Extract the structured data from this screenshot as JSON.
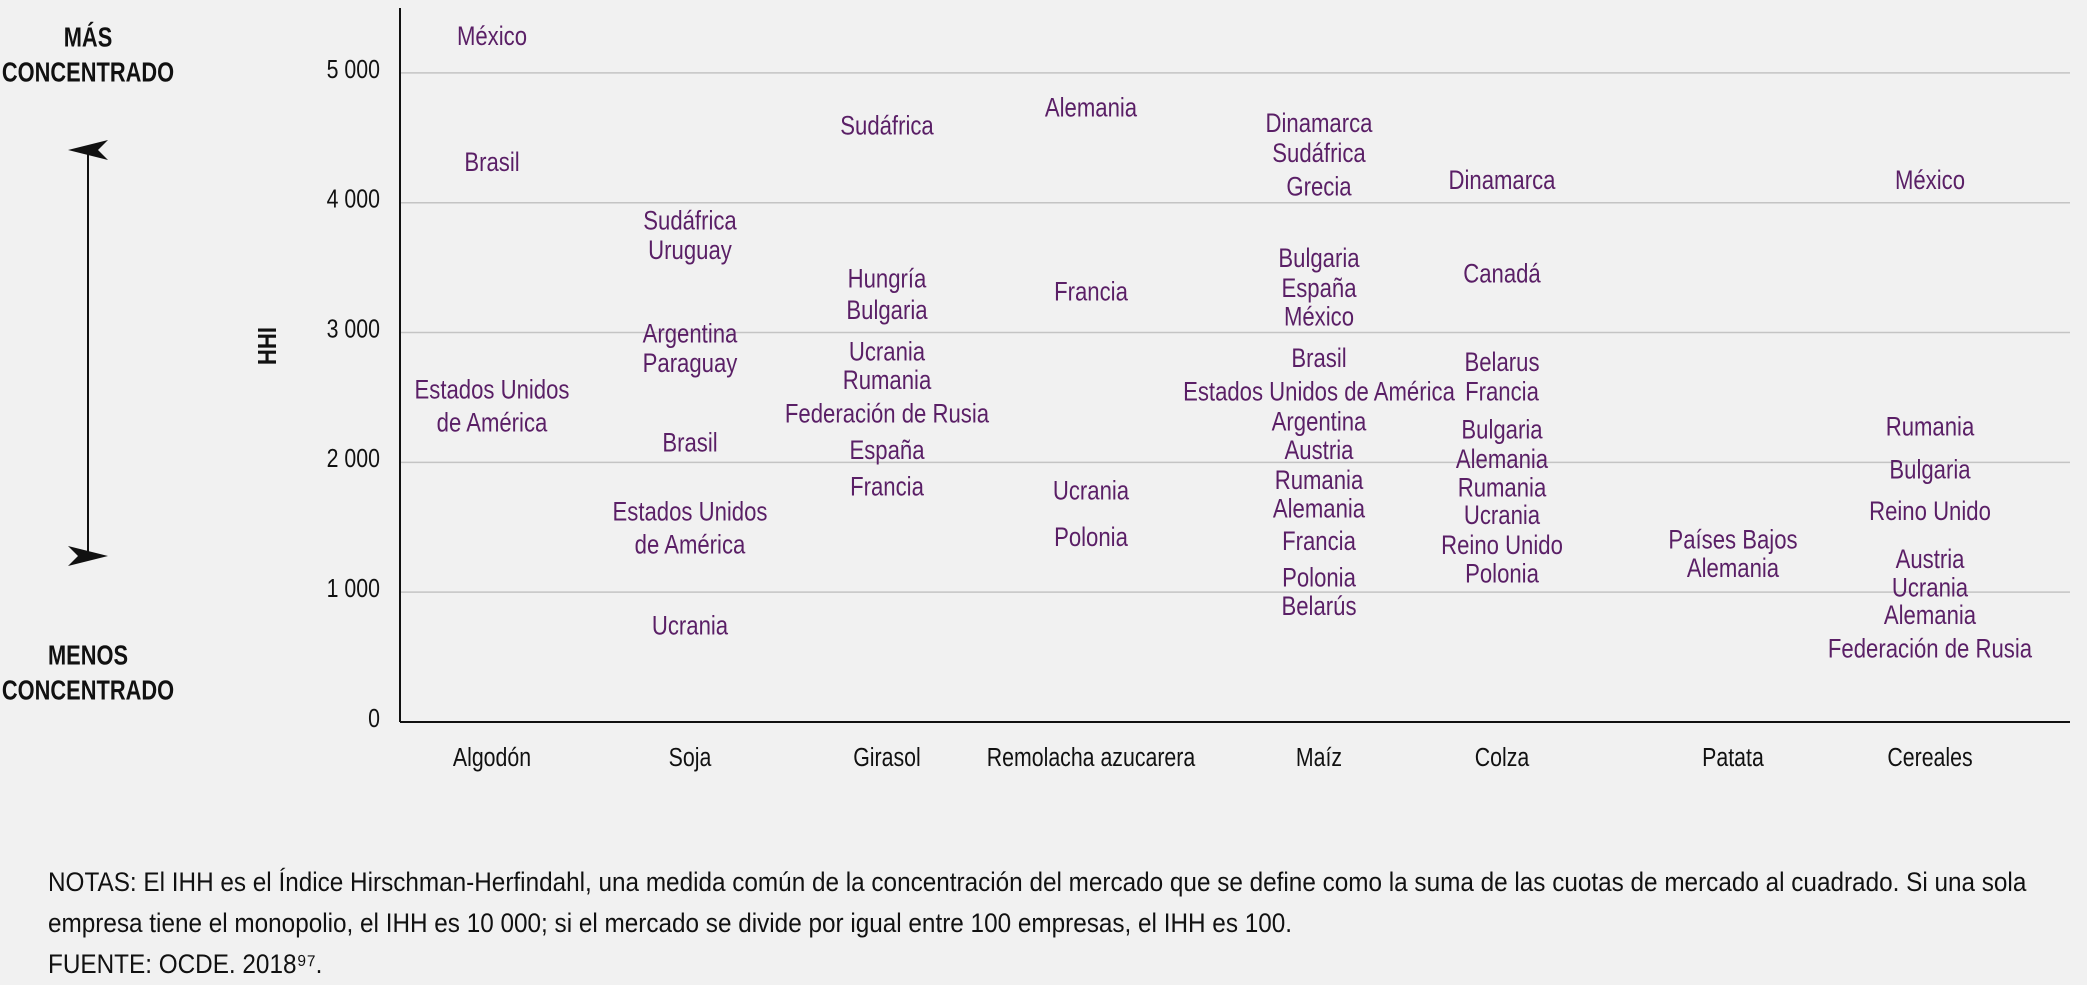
{
  "chart_data": {
    "type": "scatter",
    "ylabel": "IHH",
    "ylim": [
      0,
      5500
    ],
    "yticks": [
      0,
      1000,
      2000,
      3000,
      4000,
      5000
    ],
    "ytick_labels": [
      "0",
      "1 000",
      "2 000",
      "3 000",
      "4 000",
      "5 000"
    ],
    "grid": true,
    "scale_labels": {
      "top": [
        "MÁS",
        "CONCENTRADO"
      ],
      "bottom": [
        "MENOS",
        "CONCENTRADO"
      ]
    },
    "categories": [
      "Algodón",
      "Soja",
      "Girasol",
      "Remolacha azucarera",
      "Maíz",
      "Colza",
      "Patata",
      "Cereales"
    ],
    "points": [
      {
        "category": "Algodón",
        "label": [
          "México"
        ],
        "y": 5270
      },
      {
        "category": "Algodón",
        "label": [
          "Brasil"
        ],
        "y": 4300
      },
      {
        "category": "Algodón",
        "label": [
          "Estados Unidos",
          "de América"
        ],
        "y": 2420
      },
      {
        "category": "Soja",
        "label": [
          "Sudáfrica"
        ],
        "y": 3850
      },
      {
        "category": "Soja",
        "label": [
          "Uruguay"
        ],
        "y": 3620
      },
      {
        "category": "Soja",
        "label": [
          "Argentina"
        ],
        "y": 2980
      },
      {
        "category": "Soja",
        "label": [
          "Paraguay"
        ],
        "y": 2750
      },
      {
        "category": "Soja",
        "label": [
          "Brasil"
        ],
        "y": 2140
      },
      {
        "category": "Soja",
        "label": [
          "Estados Unidos",
          "de América"
        ],
        "y": 1480
      },
      {
        "category": "Soja",
        "label": [
          "Ucrania"
        ],
        "y": 730
      },
      {
        "category": "Girasol",
        "label": [
          "Sudáfrica"
        ],
        "y": 4580
      },
      {
        "category": "Girasol",
        "label": [
          "Hungría"
        ],
        "y": 3400
      },
      {
        "category": "Girasol",
        "label": [
          "Bulgaria"
        ],
        "y": 3160
      },
      {
        "category": "Girasol",
        "label": [
          "Ucrania"
        ],
        "y": 2840
      },
      {
        "category": "Girasol",
        "label": [
          "Rumania"
        ],
        "y": 2620
      },
      {
        "category": "Girasol",
        "label": [
          "Federación de Rusia"
        ],
        "y": 2360
      },
      {
        "category": "Girasol",
        "label": [
          "España"
        ],
        "y": 2080
      },
      {
        "category": "Girasol",
        "label": [
          "Francia"
        ],
        "y": 1800
      },
      {
        "category": "Remolacha azucarera",
        "label": [
          "Alemania"
        ],
        "y": 4720
      },
      {
        "category": "Remolacha azucarera",
        "label": [
          "Francia"
        ],
        "y": 3300
      },
      {
        "category": "Remolacha azucarera",
        "label": [
          "Ucrania"
        ],
        "y": 1770
      },
      {
        "category": "Remolacha azucarera",
        "label": [
          "Polonia"
        ],
        "y": 1410
      },
      {
        "category": "Maíz",
        "label": [
          "Dinamarca"
        ],
        "y": 4600
      },
      {
        "category": "Maíz",
        "label": [
          "Sudáfrica"
        ],
        "y": 4370
      },
      {
        "category": "Maíz",
        "label": [
          "Grecia"
        ],
        "y": 4110
      },
      {
        "category": "Maíz",
        "label": [
          "Bulgaria"
        ],
        "y": 3560
      },
      {
        "category": "Maíz",
        "label": [
          "España"
        ],
        "y": 3330
      },
      {
        "category": "Maíz",
        "label": [
          "México"
        ],
        "y": 3110
      },
      {
        "category": "Maíz",
        "label": [
          "Brasil"
        ],
        "y": 2790
      },
      {
        "category": "Maíz",
        "label": [
          "Estados Unidos de América"
        ],
        "y": 2530
      },
      {
        "category": "Maíz",
        "label": [
          "Argentina"
        ],
        "y": 2300
      },
      {
        "category": "Maíz",
        "label": [
          "Austria"
        ],
        "y": 2080
      },
      {
        "category": "Maíz",
        "label": [
          "Rumania"
        ],
        "y": 1850
      },
      {
        "category": "Maíz",
        "label": [
          "Alemania"
        ],
        "y": 1630
      },
      {
        "category": "Maíz",
        "label": [
          "Francia"
        ],
        "y": 1380
      },
      {
        "category": "Maíz",
        "label": [
          "Polonia"
        ],
        "y": 1100
      },
      {
        "category": "Maíz",
        "label": [
          "Belarús"
        ],
        "y": 880
      },
      {
        "category": "Colza",
        "label": [
          "Dinamarca"
        ],
        "y": 4160
      },
      {
        "category": "Colza",
        "label": [
          "Canadá"
        ],
        "y": 3440
      },
      {
        "category": "Colza",
        "label": [
          "Belarus"
        ],
        "y": 2760
      },
      {
        "category": "Colza",
        "label": [
          "Francia"
        ],
        "y": 2530
      },
      {
        "category": "Colza",
        "label": [
          "Bulgaria"
        ],
        "y": 2240
      },
      {
        "category": "Colza",
        "label": [
          "Alemania"
        ],
        "y": 2010
      },
      {
        "category": "Colza",
        "label": [
          "Rumania"
        ],
        "y": 1790
      },
      {
        "category": "Colza",
        "label": [
          "Ucrania"
        ],
        "y": 1580
      },
      {
        "category": "Colza",
        "label": [
          "Reino Unido"
        ],
        "y": 1350
      },
      {
        "category": "Colza",
        "label": [
          "Polonia"
        ],
        "y": 1130
      },
      {
        "category": "Patata",
        "label": [
          "Países Bajos"
        ],
        "y": 1390
      },
      {
        "category": "Patata",
        "label": [
          "Alemania"
        ],
        "y": 1170
      },
      {
        "category": "Cereales",
        "label": [
          "México"
        ],
        "y": 4160
      },
      {
        "category": "Cereales",
        "label": [
          "Rumania"
        ],
        "y": 2260
      },
      {
        "category": "Cereales",
        "label": [
          "Bulgaria"
        ],
        "y": 1930
      },
      {
        "category": "Cereales",
        "label": [
          "Reino Unido"
        ],
        "y": 1610
      },
      {
        "category": "Cereales",
        "label": [
          "Austria"
        ],
        "y": 1240
      },
      {
        "category": "Cereales",
        "label": [
          "Ucrania"
        ],
        "y": 1020
      },
      {
        "category": "Cereales",
        "label": [
          "Alemania"
        ],
        "y": 810
      },
      {
        "category": "Cereales",
        "label": [
          "Federación de Rusia"
        ],
        "y": 550
      }
    ],
    "colors": {
      "point_label": "#5a1f66",
      "axis": "#111111",
      "grid": "#c4c4c4",
      "text": "#111111"
    }
  },
  "notes": [
    "NOTAS: El IHH es el Índice Hirschman-Herfindahl, una medida común de la concentración del mercado que se define como la suma de las cuotas de mercado al cuadrado. Si una sola",
    "empresa tiene el monopolio, el IHH es 10 000; si el mercado se divide por igual entre 100 empresas, el IHH es 100.",
    "FUENTE: OCDE. 2018⁹⁷."
  ]
}
